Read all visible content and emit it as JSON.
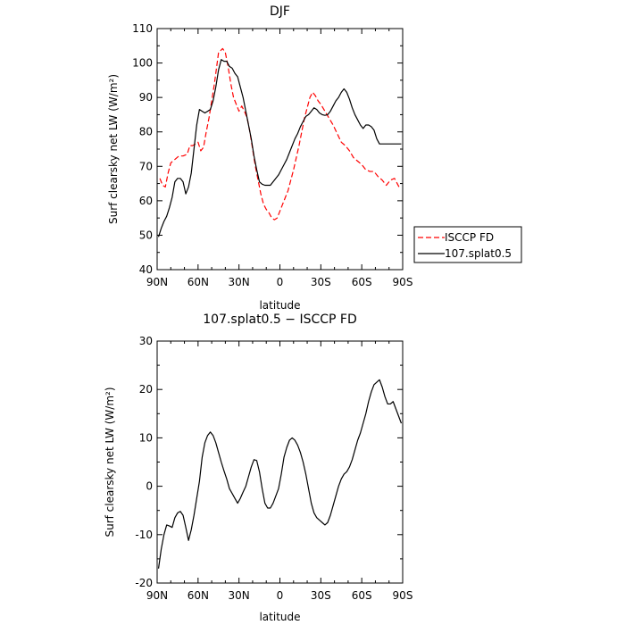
{
  "chart_data": [
    {
      "type": "line",
      "title": "DJF",
      "xlabel": "latitude",
      "ylabel": "Surf clearsky net LW (W/m²)",
      "xlim": [
        90,
        -90
      ],
      "ylim": [
        40,
        110
      ],
      "x_ticks": [
        {
          "value": 90,
          "label": "90N"
        },
        {
          "value": 60,
          "label": "60N"
        },
        {
          "value": 30,
          "label": "30N"
        },
        {
          "value": 0,
          "label": "0"
        },
        {
          "value": -30,
          "label": "30S"
        },
        {
          "value": -60,
          "label": "60S"
        },
        {
          "value": -90,
          "label": "90S"
        }
      ],
      "y_ticks": [
        40,
        50,
        60,
        70,
        80,
        90,
        100,
        110
      ],
      "legend_position": "outside-right",
      "series": [
        {
          "name": "ISCCP FD",
          "color": "#ff0000",
          "dash": "dashed",
          "x": [
            88,
            86,
            84,
            82,
            80,
            77,
            74,
            71,
            68,
            66,
            64,
            62,
            60,
            58,
            56,
            54,
            52,
            50,
            48,
            45,
            42,
            40,
            38,
            36,
            34,
            32,
            30,
            28,
            26,
            24,
            22,
            20,
            18,
            16,
            14,
            12,
            10,
            8,
            6,
            4,
            2,
            0,
            -2,
            -4,
            -6,
            -8,
            -10,
            -12,
            -14,
            -16,
            -18,
            -20,
            -22,
            -24,
            -26,
            -28,
            -30,
            -33,
            -36,
            -39,
            -42,
            -45,
            -48,
            -51,
            -54,
            -57,
            -60,
            -63,
            -66,
            -69,
            -72,
            -75,
            -78,
            -81,
            -84,
            -86,
            -88
          ],
          "y": [
            66.5,
            64.5,
            64,
            68,
            71,
            72,
            73,
            73,
            73.5,
            76,
            76,
            76.5,
            77,
            74.5,
            75.5,
            80,
            84,
            89,
            94,
            103,
            104.2,
            103,
            99,
            94,
            90,
            88,
            86,
            87.5,
            86,
            84,
            80,
            75,
            70,
            66,
            62,
            59,
            57.5,
            56.5,
            55,
            54.5,
            55,
            57,
            59,
            61,
            63,
            66,
            69,
            72.5,
            76,
            80,
            84,
            87,
            90,
            91.5,
            90.5,
            89,
            88,
            86,
            84,
            82,
            79.5,
            77,
            76,
            74.5,
            72.5,
            71.5,
            70.5,
            69,
            68.5,
            68.5,
            67,
            66,
            64.5,
            66,
            66.5,
            65,
            63.5
          ]
        },
        {
          "name": "107.splat0.5",
          "color": "#000000",
          "dash": "solid",
          "x": [
            89,
            87,
            85,
            83,
            81,
            79,
            77,
            75,
            73,
            71,
            69,
            67,
            65,
            63,
            61,
            59,
            57,
            55,
            53,
            51,
            49,
            47,
            45,
            43,
            41,
            39,
            37,
            35,
            33,
            31,
            29,
            27,
            25,
            23,
            21,
            19,
            17,
            15,
            13,
            11,
            9,
            7,
            5,
            3,
            1,
            -1,
            -3,
            -5,
            -7,
            -9,
            -11,
            -13,
            -15,
            -17,
            -19,
            -21,
            -23,
            -25,
            -27,
            -29,
            -31,
            -33,
            -35,
            -37,
            -39,
            -41,
            -43,
            -45,
            -47,
            -49,
            -51,
            -53,
            -55,
            -57,
            -59,
            -61,
            -63,
            -65,
            -67,
            -69,
            -71,
            -73,
            -75,
            -77,
            -79,
            -81,
            -83,
            -85,
            -87,
            -89
          ],
          "y": [
            49.5,
            52,
            54,
            55.5,
            58,
            61,
            65.5,
            66.5,
            66.5,
            65.5,
            62,
            64,
            68,
            75,
            82,
            86.5,
            86,
            85.5,
            86,
            86.5,
            89,
            93,
            98,
            101,
            100.5,
            100.5,
            99,
            98.5,
            97,
            96,
            93,
            90,
            86,
            82,
            78,
            73,
            69,
            65.5,
            64.8,
            64.5,
            64.5,
            64.5,
            65.5,
            66.5,
            67.5,
            69,
            70.5,
            72,
            74,
            76,
            78,
            79.5,
            81.5,
            83,
            84.5,
            85,
            86,
            87,
            86.5,
            85.5,
            85,
            84.8,
            85,
            86,
            87.5,
            89,
            90,
            91.5,
            92.5,
            91.5,
            89.5,
            87,
            85,
            83.5,
            82,
            81,
            82,
            82,
            81.5,
            80.5,
            78,
            76.5,
            76.5,
            76.5,
            76.5,
            76.5,
            76.5,
            76.5,
            76.5,
            76.5
          ]
        }
      ]
    },
    {
      "type": "line",
      "title": "107.splat0.5 − ISCCP FD",
      "xlabel": "latitude",
      "ylabel": "Surf clearsky net LW (W/m²)",
      "xlim": [
        90,
        -90
      ],
      "ylim": [
        -20,
        30
      ],
      "x_ticks": [
        {
          "value": 90,
          "label": "90N"
        },
        {
          "value": 60,
          "label": "60N"
        },
        {
          "value": 30,
          "label": "30N"
        },
        {
          "value": 0,
          "label": "0"
        },
        {
          "value": -30,
          "label": "30S"
        },
        {
          "value": -60,
          "label": "60S"
        },
        {
          "value": -90,
          "label": "90S"
        }
      ],
      "y_ticks": [
        -20,
        -10,
        0,
        10,
        20,
        30
      ],
      "series": [
        {
          "name": "",
          "color": "#000000",
          "dash": "solid",
          "x": [
            89,
            87,
            85,
            83,
            81,
            79,
            77,
            75,
            73,
            71,
            69,
            67,
            65,
            63,
            61,
            59,
            57,
            55,
            53,
            51,
            49,
            47,
            45,
            43,
            41,
            39,
            37,
            35,
            33,
            31,
            29,
            27,
            25,
            23,
            21,
            19,
            17,
            15,
            13,
            11,
            9,
            7,
            5,
            3,
            1,
            -1,
            -3,
            -5,
            -7,
            -9,
            -11,
            -13,
            -15,
            -17,
            -19,
            -21,
            -23,
            -25,
            -27,
            -29,
            -31,
            -33,
            -35,
            -37,
            -39,
            -41,
            -43,
            -45,
            -47,
            -49,
            -51,
            -53,
            -55,
            -57,
            -59,
            -61,
            -63,
            -65,
            -67,
            -69,
            -71,
            -73,
            -75,
            -77,
            -79,
            -81,
            -83,
            -85,
            -87,
            -89
          ],
          "y": [
            -17,
            -13,
            -10,
            -8,
            -8.2,
            -8.5,
            -6.5,
            -5.5,
            -5.2,
            -6,
            -8.5,
            -11.2,
            -9,
            -6,
            -2.5,
            1,
            6,
            9,
            10.5,
            11.2,
            10.5,
            9,
            7,
            5,
            3.2,
            1.5,
            -0.5,
            -1.5,
            -2.5,
            -3.5,
            -2.5,
            -1.2,
            0,
            2,
            4,
            5.5,
            5.3,
            3,
            -0.5,
            -3.5,
            -4.5,
            -4.5,
            -3.5,
            -2,
            -0.5,
            2.5,
            6,
            8,
            9.5,
            10,
            9.5,
            8.5,
            7,
            5,
            2.5,
            -0.5,
            -3.5,
            -5.5,
            -6.5,
            -7,
            -7.5,
            -8,
            -7.5,
            -6,
            -4,
            -2,
            0,
            1.5,
            2.5,
            3,
            4,
            5.5,
            7.5,
            9.5,
            11,
            13,
            15,
            17.5,
            19.5,
            21,
            21.5,
            22,
            20.5,
            18.5,
            17,
            17,
            17.5,
            16,
            14.5,
            13
          ]
        }
      ]
    }
  ]
}
